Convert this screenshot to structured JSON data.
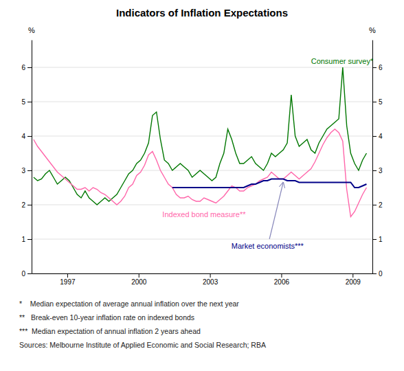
{
  "chart_data": {
    "type": "line",
    "title": "Indicators of Inflation Expectations",
    "y_label": "%",
    "y2_label": "%",
    "xlim": [
      1995.5,
      2009.83
    ],
    "xticks": [
      1997,
      2000,
      2003,
      2006,
      2009
    ],
    "ylim": [
      0,
      6.8
    ],
    "yticks": [
      0,
      1,
      2,
      3,
      4,
      5,
      6
    ],
    "y2lim": [
      0,
      6.8
    ],
    "y2ticks": [
      0,
      1,
      2,
      3,
      4,
      5,
      6
    ],
    "grid": true,
    "series": [
      {
        "color": "#007700",
        "x": [
          1995.583,
          1995.75,
          1995.917,
          1996.083,
          1996.25,
          1996.417,
          1996.583,
          1996.75,
          1996.917,
          1997.083,
          1997.25,
          1997.417,
          1997.583,
          1997.75,
          1997.917,
          1998.083,
          1998.25,
          1998.417,
          1998.583,
          1998.75,
          1998.917,
          1999.083,
          1999.25,
          1999.417,
          1999.583,
          1999.75,
          1999.917,
          2000.083,
          2000.25,
          2000.417,
          2000.583,
          2000.75,
          2000.917,
          2001.083,
          2001.25,
          2001.417,
          2001.583,
          2001.75,
          2001.917,
          2002.083,
          2002.25,
          2002.417,
          2002.583,
          2002.75,
          2002.917,
          2003.083,
          2003.25,
          2003.417,
          2003.583,
          2003.75,
          2003.917,
          2004.083,
          2004.25,
          2004.417,
          2004.583,
          2004.75,
          2004.917,
          2005.083,
          2005.25,
          2005.417,
          2005.583,
          2005.75,
          2005.917,
          2006.083,
          2006.25,
          2006.417,
          2006.583,
          2006.75,
          2006.917,
          2007.083,
          2007.25,
          2007.417,
          2007.583,
          2007.75,
          2007.917,
          2008.083,
          2008.25,
          2008.417,
          2008.583,
          2008.75,
          2008.917,
          2009.083,
          2009.25,
          2009.417,
          2009.583
        ],
        "values": [
          2.8,
          2.7,
          2.75,
          2.9,
          3.0,
          2.8,
          2.6,
          2.7,
          2.8,
          2.7,
          2.5,
          2.3,
          2.2,
          2.4,
          2.2,
          2.1,
          2.0,
          2.1,
          2.2,
          2.1,
          2.2,
          2.3,
          2.5,
          2.7,
          2.9,
          3.0,
          3.2,
          3.3,
          3.5,
          3.8,
          4.6,
          4.7,
          3.9,
          3.3,
          3.2,
          3.0,
          3.1,
          3.2,
          3.1,
          3.0,
          2.8,
          2.9,
          3.0,
          2.9,
          2.8,
          2.7,
          2.8,
          3.2,
          3.5,
          4.2,
          3.9,
          3.5,
          3.2,
          3.2,
          3.3,
          3.4,
          3.2,
          3.1,
          3.0,
          3.2,
          3.5,
          3.4,
          3.5,
          3.6,
          3.8,
          5.2,
          4.0,
          3.7,
          3.8,
          3.9,
          3.6,
          3.5,
          3.8,
          4.0,
          4.2,
          4.3,
          4.4,
          4.5,
          6.0,
          4.3,
          3.5,
          3.2,
          3.0,
          3.3,
          3.5
        ]
      },
      {
        "color": "#FF66AA",
        "x": [
          1995.583,
          1995.75,
          1995.917,
          1996.083,
          1996.25,
          1996.417,
          1996.583,
          1996.75,
          1996.917,
          1997.083,
          1997.25,
          1997.417,
          1997.583,
          1997.75,
          1997.917,
          1998.083,
          1998.25,
          1998.417,
          1998.583,
          1998.75,
          1998.917,
          1999.083,
          1999.25,
          1999.417,
          1999.583,
          1999.75,
          1999.917,
          2000.083,
          2000.25,
          2000.417,
          2000.583,
          2000.75,
          2000.917,
          2001.083,
          2001.25,
          2001.417,
          2001.583,
          2001.75,
          2001.917,
          2002.083,
          2002.25,
          2002.417,
          2002.583,
          2002.75,
          2002.917,
          2003.083,
          2003.25,
          2003.417,
          2003.583,
          2003.75,
          2003.917,
          2004.083,
          2004.25,
          2004.417,
          2004.583,
          2004.75,
          2004.917,
          2005.083,
          2005.25,
          2005.417,
          2005.583,
          2005.75,
          2005.917,
          2006.083,
          2006.25,
          2006.417,
          2006.583,
          2006.75,
          2006.917,
          2007.083,
          2007.25,
          2007.417,
          2007.583,
          2007.75,
          2007.917,
          2008.083,
          2008.25,
          2008.417,
          2008.583,
          2008.75,
          2008.917,
          2009.083,
          2009.25,
          2009.417,
          2009.583
        ],
        "values": [
          3.9,
          3.7,
          3.55,
          3.4,
          3.25,
          3.1,
          2.95,
          2.85,
          2.75,
          2.65,
          2.55,
          2.45,
          2.45,
          2.5,
          2.4,
          2.5,
          2.45,
          2.35,
          2.3,
          2.2,
          2.1,
          2.0,
          2.1,
          2.25,
          2.5,
          2.6,
          2.85,
          2.95,
          3.15,
          3.45,
          3.55,
          3.3,
          3.0,
          2.8,
          2.6,
          2.5,
          2.3,
          2.2,
          2.2,
          2.25,
          2.15,
          2.1,
          2.1,
          2.2,
          2.15,
          2.1,
          2.05,
          2.15,
          2.25,
          2.4,
          2.55,
          2.5,
          2.4,
          2.4,
          2.5,
          2.55,
          2.6,
          2.7,
          2.75,
          2.8,
          2.95,
          2.85,
          2.75,
          2.75,
          2.85,
          2.95,
          2.85,
          2.75,
          2.85,
          2.95,
          3.05,
          3.25,
          3.5,
          3.75,
          3.95,
          4.1,
          4.2,
          4.1,
          3.85,
          2.45,
          1.65,
          1.8,
          2.05,
          2.3,
          2.5
        ]
      },
      {
        "color": "#000088",
        "x": [
          2001.417,
          2001.583,
          2001.75,
          2001.917,
          2002.083,
          2002.25,
          2002.417,
          2002.583,
          2002.75,
          2002.917,
          2003.083,
          2003.25,
          2003.417,
          2003.583,
          2003.75,
          2003.917,
          2004.083,
          2004.25,
          2004.417,
          2004.583,
          2004.75,
          2004.917,
          2005.083,
          2005.25,
          2005.417,
          2005.583,
          2005.75,
          2005.917,
          2006.083,
          2006.25,
          2006.417,
          2006.583,
          2006.75,
          2006.917,
          2007.083,
          2007.25,
          2007.417,
          2007.583,
          2007.75,
          2007.917,
          2008.083,
          2008.25,
          2008.417,
          2008.583,
          2008.75,
          2008.917,
          2009.083,
          2009.25,
          2009.417,
          2009.583
        ],
        "values": [
          2.5,
          2.5,
          2.5,
          2.5,
          2.5,
          2.5,
          2.5,
          2.5,
          2.5,
          2.5,
          2.5,
          2.5,
          2.5,
          2.5,
          2.5,
          2.5,
          2.5,
          2.5,
          2.5,
          2.55,
          2.6,
          2.6,
          2.65,
          2.7,
          2.7,
          2.75,
          2.75,
          2.75,
          2.75,
          2.7,
          2.7,
          2.7,
          2.65,
          2.65,
          2.65,
          2.65,
          2.65,
          2.65,
          2.65,
          2.65,
          2.65,
          2.65,
          2.65,
          2.65,
          2.65,
          2.65,
          2.5,
          2.5,
          2.55,
          2.6
        ]
      }
    ],
    "annotations": [
      {
        "text": "Consumer survey*",
        "x": 2007.25,
        "y": 6.1,
        "color": "#007700"
      },
      {
        "text": "Indexed bond measure**",
        "x": 2001.0,
        "y": 1.65,
        "color": "#FF66AA"
      },
      {
        "text": "Market economists***",
        "x": 2003.9,
        "y": 0.72,
        "color": "#000088",
        "arrow": {
          "x": 2006.08,
          "y": 2.65,
          "from_x": 2005.5,
          "from_y": 1.0
        }
      }
    ],
    "footnotes": [
      "*    Median expectation of average annual inflation over the next year",
      "**   Break-even 10-year inflation rate on indexed bonds",
      "***  Median expectation of annual inflation 2 years ahead",
      "Sources: Melbourne Institute of Applied Economic and Social Research; RBA"
    ]
  }
}
